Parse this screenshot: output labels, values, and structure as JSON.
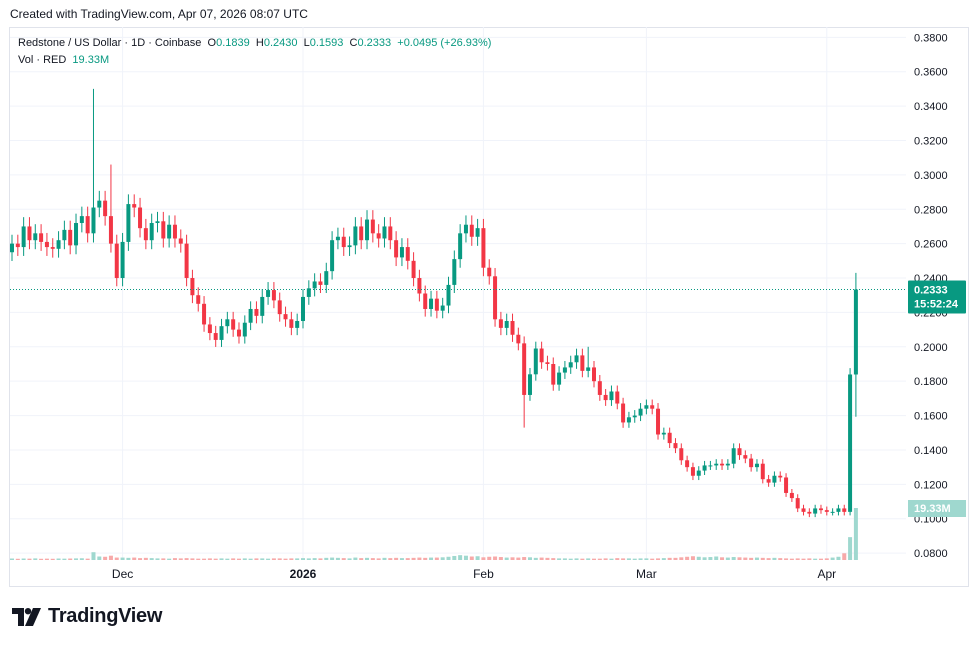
{
  "caption": "Created with TradingView.com, Apr 07, 2026 08:07 UTC",
  "legend": {
    "symbol": "Redstone / US Dollar · 1D · Coinbase",
    "open_label": "O",
    "open": "0.1839",
    "high_label": "H",
    "high": "0.2430",
    "low_label": "L",
    "low": "0.1593",
    "close_label": "C",
    "close": "0.2333",
    "change": "+0.0495 (+26.93%)",
    "vol_label": "Vol · RED",
    "vol": "19.33M"
  },
  "price_badge": {
    "price": "0.2333",
    "countdown": "15:52:24"
  },
  "volume_badge": "19.33M",
  "brand": "TradingView",
  "colors": {
    "up": "#089981",
    "down": "#F23645",
    "up_vol": "#9fd8cf",
    "down_vol": "#f7a9a9",
    "grid": "#f0f3fa",
    "text": "#131722"
  },
  "chart_data": {
    "type": "candlestick",
    "title": "Redstone / US Dollar · 1D · Coinbase",
    "ylim": [
      0.076,
      0.386
    ],
    "y_ticks": [
      "0.3800",
      "0.3600",
      "0.3400",
      "0.3200",
      "0.3000",
      "0.2800",
      "0.2600",
      "0.2400",
      "0.2200",
      "0.2000",
      "0.1800",
      "0.1600",
      "0.1400",
      "0.1200",
      "0.1000",
      "0.0800"
    ],
    "x_ticks": [
      {
        "label": "Dec",
        "index": 19
      },
      {
        "label": "2026",
        "index": 50
      },
      {
        "label": "Feb",
        "index": 81
      },
      {
        "label": "Mar",
        "index": 109
      },
      {
        "label": "Apr",
        "index": 140
      }
    ],
    "last_price": 0.2333,
    "close_path": [
      0.26,
      0.258,
      0.27,
      0.262,
      0.266,
      0.261,
      0.258,
      0.257,
      0.262,
      0.268,
      0.259,
      0.272,
      0.276,
      0.266,
      0.281,
      0.285,
      0.276,
      0.26,
      0.24,
      0.261,
      0.283,
      0.281,
      0.269,
      0.262,
      0.272,
      0.273,
      0.263,
      0.271,
      0.263,
      0.26,
      0.24,
      0.23,
      0.225,
      0.213,
      0.208,
      0.204,
      0.212,
      0.216,
      0.21,
      0.206,
      0.214,
      0.222,
      0.218,
      0.229,
      0.233,
      0.227,
      0.219,
      0.216,
      0.211,
      0.215,
      0.229,
      0.234,
      0.238,
      0.236,
      0.244,
      0.262,
      0.264,
      0.258,
      0.259,
      0.27,
      0.262,
      0.274,
      0.266,
      0.263,
      0.27,
      0.262,
      0.252,
      0.258,
      0.25,
      0.24,
      0.231,
      0.222,
      0.228,
      0.221,
      0.224,
      0.236,
      0.251,
      0.266,
      0.271,
      0.264,
      0.269,
      0.246,
      0.241,
      0.216,
      0.211,
      0.215,
      0.207,
      0.202,
      0.172,
      0.184,
      0.199,
      0.191,
      0.19,
      0.178,
      0.185,
      0.188,
      0.191,
      0.195,
      0.186,
      0.188,
      0.18,
      0.172,
      0.169,
      0.174,
      0.167,
      0.156,
      0.159,
      0.16,
      0.164,
      0.166,
      0.164,
      0.149,
      0.15,
      0.144,
      0.141,
      0.134,
      0.13,
      0.125,
      0.128,
      0.131,
      0.131,
      0.132,
      0.131,
      0.132,
      0.141,
      0.137,
      0.135,
      0.13,
      0.132,
      0.123,
      0.121,
      0.125,
      0.124,
      0.115,
      0.112,
      0.106,
      0.104,
      0.103,
      0.106,
      0.105,
      0.104,
      0.104,
      0.106,
      0.104,
      0.1839,
      0.2333
    ],
    "spikes": [
      {
        "index": 14,
        "high": 0.35
      },
      {
        "index": 17,
        "high": 0.306
      },
      {
        "index": 99,
        "high": 0.2
      },
      {
        "index": 88,
        "low": 0.153
      }
    ],
    "volume_max": 19.33,
    "volume_path": [
      0.55,
      0.45,
      0.55,
      0.5,
      0.6,
      0.45,
      0.5,
      0.45,
      0.55,
      0.5,
      0.55,
      0.6,
      0.65,
      0.5,
      2.9,
      1.3,
      1.2,
      1.6,
      0.9,
      0.9,
      0.8,
      0.9,
      0.7,
      0.8,
      0.7,
      0.6,
      0.6,
      0.5,
      0.7,
      0.6,
      0.7,
      0.6,
      0.5,
      0.5,
      0.6,
      0.5,
      0.6,
      0.5,
      0.6,
      0.5,
      0.6,
      0.5,
      0.6,
      0.6,
      0.5,
      0.6,
      0.6,
      0.5,
      0.6,
      0.6,
      0.7,
      0.6,
      0.7,
      0.6,
      0.8,
      0.9,
      0.8,
      0.7,
      0.6,
      0.9,
      0.7,
      0.8,
      0.7,
      0.6,
      0.8,
      0.7,
      0.8,
      0.7,
      0.7,
      0.8,
      0.9,
      0.8,
      0.9,
      0.9,
      1.0,
      1.2,
      1.5,
      1.8,
      1.6,
      1.3,
      1.4,
      1.0,
      1.2,
      1.3,
      1.1,
      0.9,
      1.0,
      0.9,
      1.1,
      1.0,
      0.8,
      0.9,
      0.8,
      0.7,
      0.6,
      0.6,
      0.5,
      0.6,
      0.5,
      0.6,
      0.5,
      0.5,
      0.6,
      0.5,
      0.7,
      0.6,
      0.6,
      0.5,
      0.6,
      0.6,
      0.5,
      0.6,
      0.7,
      0.8,
      0.8,
      1.0,
      1.2,
      1.4,
      1.2,
      1.0,
      1.1,
      1.3,
      1.0,
      0.9,
      1.1,
      1.0,
      0.9,
      0.8,
      0.9,
      0.8,
      0.7,
      0.8,
      0.7,
      0.6,
      0.5,
      0.6,
      0.5,
      0.6,
      0.5,
      0.5,
      0.6,
      0.9,
      1.2,
      2.5,
      8.5,
      19.33
    ]
  }
}
